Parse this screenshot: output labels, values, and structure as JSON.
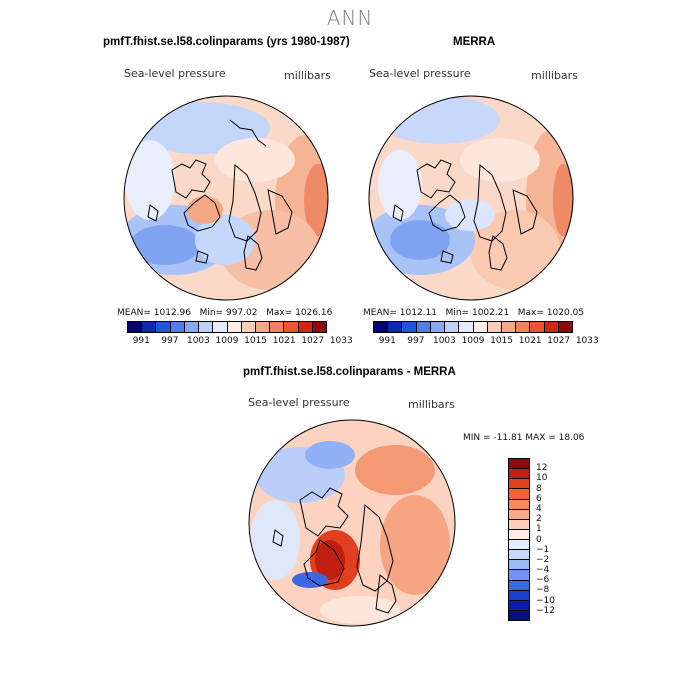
{
  "season": "ANN",
  "panels": [
    {
      "title": "pmfT.fhist.se.l58.colinparams (yrs 1980-1987)",
      "variable": "Sea-level pressure",
      "units": "millibars",
      "mean_label": "MEAN=",
      "mean": "1012.96",
      "min_label": "Min=",
      "min": "997.02",
      "max_label": "Max=",
      "max": "1026.16"
    },
    {
      "title": "MERRA",
      "variable": "Sea-level pressure",
      "units": "millibars",
      "mean_label": "MEAN=",
      "mean": "1012.11",
      "min_label": "Min=",
      "min": "1002.21",
      "max_label": "Max=",
      "max": "1020.05"
    },
    {
      "title": "pmfT.fhist.se.l58.colinparams - MERRA",
      "variable": "Sea-level pressure",
      "units": "millibars",
      "minmax_text": "MIN = -11.81  MAX =  18.06"
    }
  ],
  "abs_colorbar": {
    "colors": [
      "#08006e",
      "#0a2ca6",
      "#1f55d6",
      "#4f7ef0",
      "#86a8f6",
      "#bdd0fa",
      "#e2ebfc",
      "#fdeee6",
      "#fbcdb6",
      "#f6a988",
      "#f1805e",
      "#e8552f",
      "#cc2a10",
      "#8f0b0b"
    ],
    "ticks": [
      "991",
      "997",
      "1003",
      "1009",
      "1015",
      "1021",
      "1027",
      "1033"
    ]
  },
  "diff_colorbar": {
    "colors": [
      "#8f0b0b",
      "#c01e0e",
      "#e0401e",
      "#f06436",
      "#f58a5e",
      "#f7ad89",
      "#fad1bd",
      "#fdede3",
      "#e6eefc",
      "#c7d8fa",
      "#9fbbf6",
      "#6f95f0",
      "#3e67e2",
      "#1a3fcf",
      "#0a1eab",
      "#06107e"
    ],
    "ticks": [
      "12",
      "10",
      "8",
      "6",
      "4",
      "2",
      "1",
      "0",
      "−1",
      "−2",
      "−4",
      "−6",
      "−8",
      "−10",
      "−12"
    ]
  }
}
